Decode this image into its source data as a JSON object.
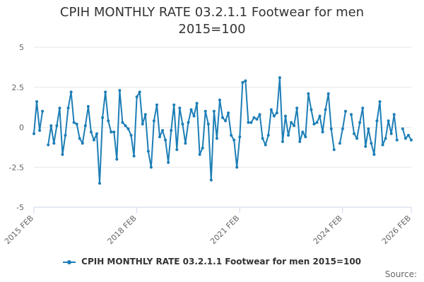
{
  "chart_data": {
    "type": "line",
    "title_lines": [
      "CPIH MONTHLY RATE 03.2.1.1 Footwear for men",
      "2015=100"
    ],
    "credit": "Source:",
    "xlabel": "",
    "ylabel": "",
    "ylim": [
      -5,
      5
    ],
    "y_ticks": [
      5,
      2.5,
      0,
      -2.5,
      -5
    ],
    "y_tick_labels": [
      "5",
      "2.5",
      "0",
      "-2.5",
      "-5"
    ],
    "x_start": "2015-02",
    "x_end": "2026-02",
    "x_tick_labels": [
      {
        "label": "2015 FEB",
        "date": "2015-02"
      },
      {
        "label": "2018 FEB",
        "date": "2018-02"
      },
      {
        "label": "2021 FEB",
        "date": "2021-02"
      },
      {
        "label": "2024 FEB",
        "date": "2024-02"
      },
      {
        "label": "2026 FEB",
        "date": "2026-02"
      }
    ],
    "grid": true,
    "legend_position": "bottom",
    "series": [
      {
        "name": "CPIH MONTHLY RATE 03.2.1.1 Footwear for men 2015=100",
        "color": "#1d7eb6",
        "points": [
          [
            "2015-02",
            -0.4
          ],
          [
            "2015-03",
            1.6
          ],
          [
            "2015-04",
            -0.2
          ],
          [
            "2015-05",
            1.0
          ],
          [
            "2015-06",
            null
          ],
          [
            "2015-07",
            -1.1
          ],
          [
            "2015-08",
            0.1
          ],
          [
            "2015-09",
            -1.0
          ],
          [
            "2015-10",
            0.1
          ],
          [
            "2015-11",
            1.2
          ],
          [
            "2015-12",
            -1.7
          ],
          [
            "2016-01",
            -0.5
          ],
          [
            "2016-02",
            1.2
          ],
          [
            "2016-03",
            2.2
          ],
          [
            "2016-04",
            0.3
          ],
          [
            "2016-05",
            0.2
          ],
          [
            "2016-06",
            -0.7
          ],
          [
            "2016-07",
            -1.0
          ],
          [
            "2016-08",
            0.1
          ],
          [
            "2016-09",
            1.3
          ],
          [
            "2016-10",
            -0.3
          ],
          [
            "2016-11",
            -0.8
          ],
          [
            "2016-12",
            -0.4
          ],
          [
            "2017-01",
            -3.5
          ],
          [
            "2017-02",
            0.6
          ],
          [
            "2017-03",
            2.2
          ],
          [
            "2017-04",
            0.4
          ],
          [
            "2017-05",
            -0.3
          ],
          [
            "2017-06",
            -0.3
          ],
          [
            "2017-07",
            -2.0
          ],
          [
            "2017-08",
            2.3
          ],
          [
            "2017-09",
            0.3
          ],
          [
            "2017-10",
            0.1
          ],
          [
            "2017-11",
            -0.1
          ],
          [
            "2017-12",
            -0.5
          ],
          [
            "2018-01",
            -1.8
          ],
          [
            "2018-02",
            1.9
          ],
          [
            "2018-03",
            2.2
          ],
          [
            "2018-04",
            0.2
          ],
          [
            "2018-05",
            0.8
          ],
          [
            "2018-06",
            -1.5
          ],
          [
            "2018-07",
            -2.5
          ],
          [
            "2018-08",
            0.4
          ],
          [
            "2018-09",
            1.4
          ],
          [
            "2018-10",
            -0.6
          ],
          [
            "2018-11",
            -0.2
          ],
          [
            "2018-12",
            -0.8
          ],
          [
            "2019-01",
            -2.2
          ],
          [
            "2019-02",
            -0.2
          ],
          [
            "2019-03",
            1.4
          ],
          [
            "2019-04",
            -1.4
          ],
          [
            "2019-05",
            1.2
          ],
          [
            "2019-06",
            0.2
          ],
          [
            "2019-07",
            -1.0
          ],
          [
            "2019-08",
            0.3
          ],
          [
            "2019-09",
            1.1
          ],
          [
            "2019-10",
            0.7
          ],
          [
            "2019-11",
            1.5
          ],
          [
            "2019-12",
            -1.7
          ],
          [
            "2020-01",
            -1.3
          ],
          [
            "2020-02",
            1.0
          ],
          [
            "2020-03",
            0.2
          ],
          [
            "2020-04",
            -3.3
          ],
          [
            "2020-05",
            1.0
          ],
          [
            "2020-06",
            -0.7
          ],
          [
            "2020-07",
            1.7
          ],
          [
            "2020-08",
            0.6
          ],
          [
            "2020-09",
            0.4
          ],
          [
            "2020-10",
            0.9
          ],
          [
            "2020-11",
            -0.5
          ],
          [
            "2020-12",
            -0.8
          ],
          [
            "2021-01",
            -2.5
          ],
          [
            "2021-02",
            -0.6
          ],
          [
            "2021-03",
            2.8
          ],
          [
            "2021-04",
            2.9
          ],
          [
            "2021-05",
            0.3
          ],
          [
            "2021-06",
            0.3
          ],
          [
            "2021-07",
            0.6
          ],
          [
            "2021-08",
            0.5
          ],
          [
            "2021-09",
            0.8
          ],
          [
            "2021-10",
            -0.7
          ],
          [
            "2021-11",
            -1.1
          ],
          [
            "2021-12",
            -0.5
          ],
          [
            "2022-01",
            1.1
          ],
          [
            "2022-02",
            0.7
          ],
          [
            "2022-03",
            0.9
          ],
          [
            "2022-04",
            3.1
          ],
          [
            "2022-05",
            -0.9
          ],
          [
            "2022-06",
            0.7
          ],
          [
            "2022-07",
            -0.5
          ],
          [
            "2022-08",
            0.3
          ],
          [
            "2022-09",
            0.1
          ],
          [
            "2022-10",
            1.2
          ],
          [
            "2022-11",
            -0.9
          ],
          [
            "2022-12",
            -0.3
          ],
          [
            "2023-01",
            -0.6
          ],
          [
            "2023-02",
            2.1
          ],
          [
            "2023-03",
            1.1
          ],
          [
            "2023-04",
            0.2
          ],
          [
            "2023-05",
            0.3
          ],
          [
            "2023-06",
            0.7
          ],
          [
            "2023-07",
            -0.3
          ],
          [
            "2023-08",
            1.1
          ],
          [
            "2023-09",
            2.1
          ],
          [
            "2023-10",
            -0.1
          ],
          [
            "2023-11",
            -1.4
          ],
          [
            "2023-12",
            null
          ],
          [
            "2024-01",
            -1.0
          ],
          [
            "2024-02",
            -0.1
          ],
          [
            "2024-03",
            1.0
          ],
          [
            "2024-04",
            null
          ],
          [
            "2024-05",
            0.8
          ],
          [
            "2024-06",
            -0.4
          ],
          [
            "2024-07",
            -0.7
          ],
          [
            "2024-08",
            0.3
          ],
          [
            "2024-09",
            1.2
          ],
          [
            "2024-10",
            -1.2
          ],
          [
            "2024-11",
            -0.1
          ],
          [
            "2024-12",
            -1.0
          ],
          [
            "2025-01",
            -1.7
          ],
          [
            "2025-02",
            0.4
          ],
          [
            "2025-03",
            1.6
          ],
          [
            "2025-04",
            -1.1
          ],
          [
            "2025-05",
            -0.7
          ],
          [
            "2025-06",
            0.4
          ],
          [
            "2025-07",
            -0.4
          ],
          [
            "2025-08",
            0.8
          ],
          [
            "2025-09",
            -0.8
          ],
          [
            "2025-10",
            null
          ],
          [
            "2025-11",
            -0.1
          ],
          [
            "2025-12",
            -0.7
          ],
          [
            "2026-01",
            -0.5
          ],
          [
            "2026-02",
            -0.8
          ]
        ]
      }
    ]
  }
}
